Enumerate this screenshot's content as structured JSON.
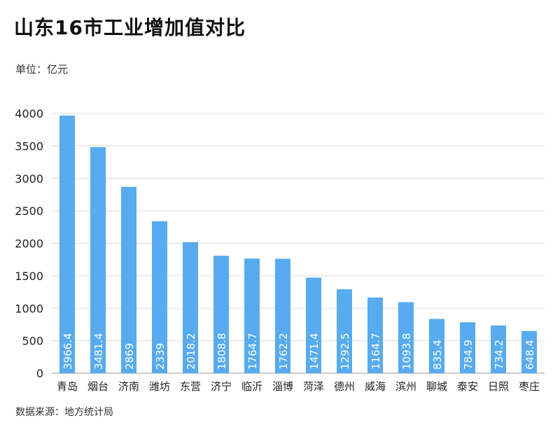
{
  "chart_data": {
    "type": "bar",
    "title": "山东16市工业增加值对比",
    "unit_label": "单位：亿元",
    "source": "数据来源：地方统计局",
    "categories": [
      "青岛",
      "烟台",
      "济南",
      "潍坊",
      "东营",
      "济宁",
      "临沂",
      "淄博",
      "菏泽",
      "德州",
      "威海",
      "滨州",
      "聊城",
      "泰安",
      "日照",
      "枣庄"
    ],
    "values": [
      3966.4,
      3481.4,
      2869,
      2339,
      2018.2,
      1808.8,
      1764.7,
      1762.2,
      1471.4,
      1292.5,
      1164.7,
      1093.8,
      835.4,
      784.9,
      734.2,
      648.4
    ],
    "value_labels": [
      "3966.4",
      "3481.4",
      "2869",
      "2339",
      "2018.2",
      "1808.8",
      "1764.7",
      "1762.2",
      "1471.4",
      "1292.5",
      "1164.7",
      "1093.8",
      "835.4",
      "784.9",
      "734.2",
      "648.4"
    ],
    "yticks": [
      "0",
      "500",
      "1000",
      "1500",
      "2000",
      "2500",
      "3000",
      "3500",
      "4000"
    ],
    "ylim": [
      0,
      4000
    ],
    "grid": true,
    "bar_color": "#57abee"
  }
}
